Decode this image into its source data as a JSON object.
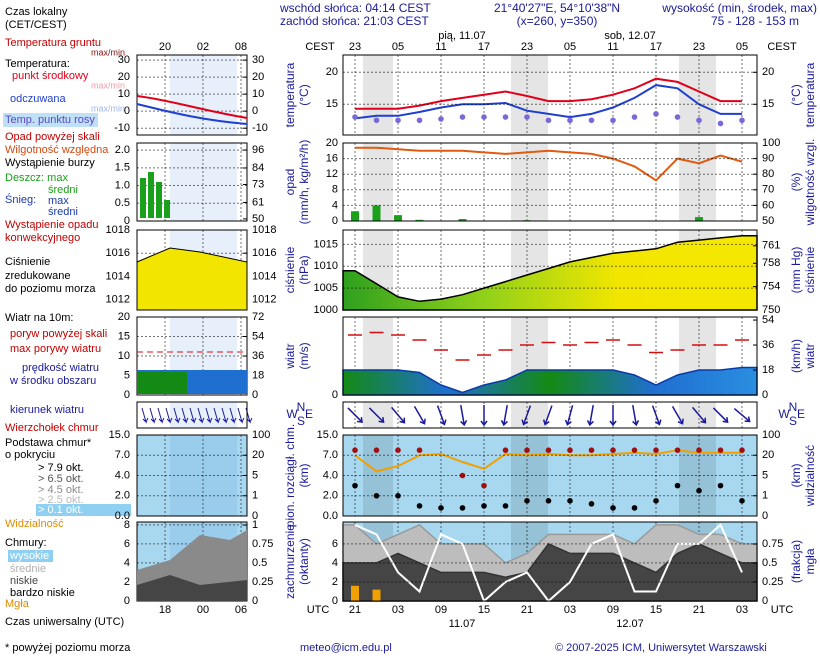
{
  "header": {
    "sunrise": "wschód słońca: 04:14 CEST",
    "sunset": "zachód słońca: 21:03 CEST",
    "coords": "21°40'27\"E, 54°10'38\"N",
    "grid_point": "(x=260, y=350)",
    "elevation_label": "wysokość (min, środek, max)",
    "elevation": "75 - 128 - 153 m",
    "local_time": [
      "Czas lokalny",
      "(CET/CEST)"
    ]
  },
  "time_axis": {
    "zone_top": "CEST",
    "zone_bottom": "UTC",
    "categories_top": [
      "23",
      null,
      "05",
      null,
      "11",
      null,
      "17",
      null,
      "23",
      null,
      "05",
      null,
      "11",
      null,
      "17",
      null,
      "23",
      null,
      "05"
    ],
    "categories": [
      "21",
      null,
      "03",
      null,
      "09",
      null,
      "15",
      null,
      "21",
      null,
      "03",
      null,
      "09",
      null,
      "15",
      null,
      "21",
      null,
      "03"
    ],
    "dates_top": [
      "pią, 11.07",
      "sob, 12.07"
    ],
    "dates_bottom": [
      "11.07",
      "12.07"
    ]
  },
  "local_axis": {
    "top": [
      "20",
      "02",
      "08"
    ],
    "bottom": [
      "18",
      "00",
      "06"
    ]
  },
  "legend": {
    "ground_temp": "Temperatura gruntu",
    "ground_temp_range": "max/min",
    "temp": "Temperatura:",
    "temp_mid": "punkt środkowy",
    "temp_mid_range": "max/min",
    "felt": "odczuwana",
    "felt_range": "max/min",
    "dew": "Temp. punktu rosy",
    "precip_over": "Opad powyżej skali",
    "humidity": "Wilgotność względna",
    "storm": "Wystąpienie burzy",
    "rain_max": "Deszcz: max",
    "rain_mean": "średni",
    "snow": "Śnieg:",
    "snow_max": "max",
    "snow_mean": "średni",
    "convective": [
      "Wystąpienie opadu",
      "konwekcyjnego"
    ],
    "pressure": [
      "Ciśnienie",
      "zredukowane",
      "do poziomu morza"
    ],
    "wind": "Wiatr na 10m:",
    "gust_over": "poryw powyżej skali",
    "gust_max": "max porywy wiatru",
    "wind_speed": [
      "prędkość wiatru",
      "w środku obszaru"
    ],
    "wind_dir": "kierunek wiatru",
    "cloud_top": "Wierzchołek chmur",
    "cloud_base": [
      "Podstawa chmur*",
      "o pokryciu"
    ],
    "cover": [
      "> 7.9 okt.",
      "> 6.5 okt.",
      "> 4.5 okt.",
      "> 2.5 okt.",
      "> 0.1 okt."
    ],
    "visibility": "Widzialność",
    "clouds": "Chmury:",
    "cloud_levels": [
      "wysokie",
      "średnie",
      "niskie",
      "bardzo niskie"
    ],
    "fog": "Mgła"
  },
  "legend_panels": [
    {
      "background": "#ffffff",
      "ylim": [
        -14,
        33
      ],
      "yticks": [
        -10,
        0,
        10,
        20,
        30
      ],
      "y2lim": [
        -14,
        33
      ],
      "y2ticks": [
        -10,
        0,
        10,
        20,
        30
      ]
    },
    {
      "background": "#ffffff",
      "ylim": [
        0,
        2.2
      ],
      "yticks": [
        0,
        0.5,
        {
          "value": 1,
          "label": "1.0"
        },
        1.5,
        {
          "value": 2,
          "label": "2.0"
        }
      ],
      "y2lim": [
        48.6,
        100.7
      ],
      "y2ticks": [
        50,
        61,
        73,
        84,
        96
      ]
    },
    {
      "background": "#ffffff",
      "ylim": [
        1011.1,
        1018
      ],
      "yticks": [
        1012,
        1014,
        1016,
        1018
      ],
      "y2lim": [
        1011.1,
        1018
      ],
      "y2ticks": [
        1012,
        1014,
        1016,
        1018
      ]
    },
    {
      "background": "#ffffff",
      "ylim": [
        0,
        20
      ],
      "yticks": [
        0,
        5,
        10,
        15,
        20
      ],
      "y2lim": [
        0,
        72
      ],
      "y2ticks": [
        0,
        18,
        36,
        54,
        72
      ]
    },
    {
      "background": "#a8d8f0",
      "yscale": "piecewise",
      "ylim": [
        0,
        15
      ],
      "yticks": [
        {
          "value": 0,
          "label": "0.0"
        },
        {
          "value": 2,
          "label": "2.0"
        },
        {
          "value": 4,
          "label": "4.0"
        },
        {
          "value": 7,
          "label": "7.0"
        },
        {
          "value": 15,
          "label": "15.0"
        }
      ],
      "y2scale": "piecewise",
      "y2lim": [
        0,
        100
      ],
      "y2ticks": [
        0,
        1,
        5,
        20,
        100
      ]
    },
    {
      "background": "#a8d8f0",
      "ylim": [
        0,
        8.3
      ],
      "yticks": [
        0,
        2,
        4,
        6,
        8
      ],
      "y2lim": [
        0,
        1.04
      ],
      "y2ticks": [
        0,
        0.25,
        0.5,
        0.75,
        1
      ]
    }
  ],
  "chart_data": [
    {
      "type": "line",
      "background": "#ffffff",
      "grid": true,
      "title_left": [
        "temperatura",
        "(°C)"
      ],
      "title_right": [
        "(°C)",
        "temperatura"
      ],
      "ylim": [
        10.2,
        22.7
      ],
      "yticks": [
        15,
        20
      ],
      "y2lim": [
        10.2,
        22.7
      ],
      "y2ticks": [
        15,
        20
      ],
      "series": [
        {
          "kind": "line",
          "color": "#e0001a",
          "values": [
            14.3,
            14.3,
            14.3,
            14.8,
            15.5,
            16,
            16.5,
            17,
            16.3,
            15.5,
            15.5,
            15.8,
            16.5,
            17.5,
            19,
            18.5,
            17,
            15.5,
            15.5
          ]
        },
        {
          "kind": "line",
          "color": "#1f3fd0",
          "values": [
            12.8,
            13.2,
            13.2,
            13.8,
            14.5,
            15,
            15,
            15.2,
            14,
            13.5,
            13,
            13.5,
            14.5,
            16,
            18,
            17.5,
            15,
            13.5,
            13.5
          ]
        },
        {
          "kind": "dots",
          "color": "#7b68d8",
          "values": [
            13,
            12.5,
            12.5,
            12.5,
            12.7,
            13,
            13,
            13,
            13,
            12.5,
            12.5,
            12.5,
            12.5,
            13,
            13.5,
            13,
            12.5,
            12,
            12.5
          ]
        }
      ]
    },
    {
      "type": "line",
      "background": "#ffffff",
      "grid": true,
      "title_left": [
        "opad",
        "(mm/h, kg/m²/h)"
      ],
      "title_right": [
        "(%)",
        "wilgotność wzgl."
      ],
      "ylim": [
        0,
        20
      ],
      "yticks": [
        0,
        4,
        8,
        12,
        16,
        20
      ],
      "y2lim": [
        50,
        100
      ],
      "y2ticks": [
        50,
        60,
        70,
        80,
        90,
        100
      ],
      "series": [
        {
          "kind": "bar",
          "color": "#1aa01a",
          "values": [
            2.5,
            4,
            1.5,
            0.3,
            0,
            0.5,
            0,
            0,
            0.2,
            0,
            0,
            0,
            0,
            0,
            0,
            0,
            1,
            0,
            0
          ]
        },
        {
          "kind": "line",
          "axis": "y2",
          "color": "#e05a10",
          "values": [
            97,
            97,
            96,
            95,
            95,
            95,
            94,
            93,
            94,
            95,
            94,
            93,
            90,
            85,
            76,
            90,
            87,
            92,
            88
          ]
        }
      ]
    },
    {
      "type": "line",
      "background": "#ffffff",
      "grid": true,
      "title_left": [
        "ciśnienie",
        "(hPa)"
      ],
      "title_right": [
        "(mm Hg)",
        "ciśnienie"
      ],
      "ylim": [
        1000,
        1018.3
      ],
      "yticks": [
        1000,
        1005,
        1010,
        1015
      ],
      "y2lim": [
        750,
        763.7
      ],
      "y2ticks": [
        750,
        754,
        758,
        761
      ],
      "series": [
        {
          "kind": "area",
          "color": "#000000",
          "fill_colors": [
            "#2ea01e",
            "#8fd01a",
            "#f2e600",
            "#f5e800"
          ],
          "values": [
            1009,
            1006,
            1003,
            1002,
            1002.5,
            1003.5,
            1005,
            1006.5,
            1008,
            1009.5,
            1011,
            1012,
            1013,
            1013.5,
            1014,
            1015.5,
            1016,
            1016.5,
            1017
          ]
        }
      ]
    },
    {
      "type": "line",
      "background": "#ffffff",
      "grid": true,
      "title_left": [
        "wiatr",
        "(m/s)"
      ],
      "title_right": [
        "(km/h)",
        "wiatr"
      ],
      "ylim": [
        0,
        15.6
      ],
      "yticks": [
        0
      ],
      "y2lim": [
        0,
        56.2
      ],
      "y2ticks": [
        0,
        18,
        36,
        54
      ],
      "series": [
        {
          "kind": "area",
          "color": "#0b3aa8",
          "fill_colors": [
            "#138a13",
            "#1f6fd0",
            "#138a13",
            "#1f6fd0",
            "#2a8ee0"
          ],
          "values": [
            5,
            5,
            5,
            4.5,
            2,
            0.5,
            2,
            3,
            5,
            5,
            5,
            5,
            5,
            4,
            2,
            4,
            5,
            5,
            5.5
          ]
        },
        {
          "kind": "dash",
          "color": "#d01010",
          "values": [
            12,
            12.5,
            12,
            11,
            9,
            7,
            8,
            9,
            10,
            10.5,
            10,
            10.5,
            11,
            10,
            8.5,
            9,
            10,
            10,
            11
          ]
        }
      ]
    },
    {
      "type": "arrows",
      "background": "#ffffff",
      "grid": true,
      "color": "#1a1a9a",
      "compass": {
        "n": "N",
        "w": "W",
        "e": "E",
        "s": "S"
      },
      "values": [
        315,
        315,
        320,
        330,
        340,
        350,
        0,
        10,
        20,
        20,
        15,
        10,
        0,
        350,
        340,
        330,
        320,
        315,
        310
      ]
    },
    {
      "type": "line",
      "background": "#a8d8f0",
      "grid": true,
      "title_left": [
        "pion. rozciągł. chm.",
        "(km)"
      ],
      "title_right": [
        "(km)",
        "widzialność"
      ],
      "yscale": "piecewise",
      "ylim": [
        0,
        15
      ],
      "yticks": [
        {
          "value": 0,
          "label": "0.0"
        },
        {
          "value": 2,
          "label": "2.0"
        },
        {
          "value": 4,
          "label": "4.0"
        },
        {
          "value": 7,
          "label": "7.0"
        },
        {
          "value": 15,
          "label": "15.0"
        }
      ],
      "y2scale": "piecewise",
      "y2lim": [
        0,
        100
      ],
      "y2ticks": [
        0,
        1,
        5,
        20,
        100
      ],
      "series": [
        {
          "kind": "line",
          "axis": "y2",
          "color": "#f0a000",
          "values": [
            20,
            8,
            12,
            20,
            25,
            15,
            10,
            25,
            20,
            25,
            20,
            20,
            25,
            30,
            25,
            40,
            30,
            30,
            30
          ]
        },
        {
          "kind": "dots",
          "color": "#a01010",
          "values": [
            9,
            9,
            9,
            9,
            null,
            4,
            3,
            9,
            9,
            9,
            9,
            9,
            9,
            9,
            9,
            9,
            9,
            9,
            9
          ]
        },
        {
          "kind": "dots",
          "color": "#000000",
          "values": [
            3,
            2,
            2,
            1,
            0.8,
            0.8,
            1,
            1,
            1.5,
            1.5,
            1.5,
            1.2,
            0.8,
            0.8,
            1.5,
            3,
            2.5,
            3,
            1.5
          ]
        }
      ]
    },
    {
      "type": "line",
      "background": "#a8d8f0",
      "grid": true,
      "title_left": [
        "zachmurzenie",
        "(oktanty)"
      ],
      "title_right": [
        "(frakcja)",
        "mgła"
      ],
      "ylim": [
        0,
        8.3
      ],
      "yticks": [
        0,
        2,
        4,
        6
      ],
      "y2lim": [
        0,
        1.04
      ],
      "y2ticks": [
        0,
        0.25,
        0.5,
        0.75
      ],
      "series": [
        {
          "kind": "area",
          "color": "#9a9a9a",
          "fill_colors": [
            "#bdbdbd"
          ],
          "values": [
            8,
            6,
            7,
            8,
            6,
            6,
            6,
            4,
            5,
            7,
            7,
            7,
            7,
            6,
            8,
            8,
            7,
            7,
            6
          ]
        },
        {
          "kind": "area",
          "color": "#333333",
          "fill_colors": [
            "#454545"
          ],
          "values": [
            4,
            4,
            5,
            4,
            3,
            3,
            3,
            2.5,
            3,
            6,
            5,
            5,
            5,
            4,
            3,
            5,
            6,
            5,
            4
          ]
        },
        {
          "kind": "line",
          "color": "#ffffff",
          "values": [
            8,
            7,
            3,
            1,
            7,
            6,
            0,
            2,
            3,
            0,
            2,
            6,
            7,
            1,
            1,
            6,
            6,
            8,
            3
          ]
        },
        {
          "kind": "bar",
          "axis": "y2",
          "color": "#f0a000",
          "values": [
            0.2,
            0.15,
            0,
            0,
            0,
            0,
            0,
            0,
            0,
            0,
            0,
            0,
            0,
            0,
            0,
            0,
            0,
            0,
            0
          ]
        }
      ]
    }
  ],
  "footer": {
    "utc": "Czas uniwersalny (UTC)",
    "note": "* powyżej poziomu morza",
    "email": "meteo@icm.edu.pl",
    "copyright": "© 2007-2025 ICM, Uniwersytet Warszawski"
  }
}
